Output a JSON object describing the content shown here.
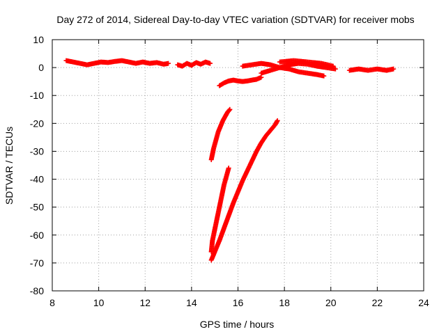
{
  "chart_data": {
    "type": "scatter",
    "title": "Day 272 of 2014, Sidereal Day-to-day VTEC variation (SDTVAR) for receiver mobs",
    "xlabel": "GPS time / hours",
    "ylabel": "SDTVAR / TECUs",
    "xlim": [
      8,
      24
    ],
    "ylim": [
      -80,
      10
    ],
    "x_ticks": [
      "8",
      "10",
      "12",
      "14",
      "16",
      "18",
      "20",
      "22",
      "24"
    ],
    "y_ticks": [
      "10",
      "0",
      "-10",
      "-20",
      "-30",
      "-40",
      "-50",
      "-60",
      "-70",
      "-80"
    ],
    "grid": true,
    "marker": "plus",
    "color": "#ff0000",
    "series": [
      {
        "x": [
          8.6,
          8.9,
          9.2,
          9.5,
          9.8,
          10.1,
          10.4,
          10.7,
          11.0,
          11.3,
          11.6,
          11.9,
          12.2,
          12.5,
          12.8,
          13.0
        ],
        "y": [
          2.5,
          2.0,
          1.5,
          1.0,
          1.5,
          2.0,
          1.8,
          2.2,
          2.5,
          2.0,
          1.5,
          2.0,
          1.5,
          1.8,
          1.2,
          1.5
        ]
      },
      {
        "x": [
          13.4,
          13.6,
          13.8,
          14.0,
          14.2,
          14.4,
          14.6,
          14.8
        ],
        "y": [
          1.0,
          0.5,
          1.5,
          0.8,
          1.8,
          1.2,
          2.0,
          1.5
        ]
      },
      {
        "x": [
          15.2,
          15.4,
          15.6,
          15.8,
          16.0,
          16.2,
          16.4,
          16.6,
          16.8,
          17.0
        ],
        "y": [
          -6.5,
          -5.5,
          -4.8,
          -4.5,
          -4.8,
          -5.0,
          -4.8,
          -4.5,
          -4.2,
          -3.5
        ]
      },
      {
        "x": [
          16.2,
          16.6,
          17.0,
          17.4,
          17.8,
          18.2,
          18.6,
          19.0,
          19.4,
          19.7
        ],
        "y": [
          0.5,
          1.0,
          1.5,
          1.0,
          0.0,
          -0.5,
          -1.5,
          -2.0,
          -2.5,
          -3.0
        ]
      },
      {
        "x": [
          17.0,
          17.4,
          17.8,
          18.2,
          18.6,
          19.0,
          19.4,
          19.8,
          20.2
        ],
        "y": [
          -2.0,
          -1.0,
          0.0,
          1.0,
          1.5,
          1.2,
          0.5,
          0.0,
          -0.5
        ]
      },
      {
        "x": [
          17.8,
          18.4,
          19.0,
          19.6,
          20.1
        ],
        "y": [
          2.0,
          2.5,
          2.0,
          1.5,
          0.5
        ]
      },
      {
        "x": [
          20.8,
          21.2,
          21.6,
          22.0,
          22.4,
          22.7
        ],
        "y": [
          -1.0,
          -0.5,
          -1.0,
          -0.5,
          -1.0,
          -0.5
        ]
      },
      {
        "x": [
          14.85,
          14.95,
          15.05,
          15.15,
          15.25,
          15.35,
          15.45,
          15.55,
          15.65
        ],
        "y": [
          -33,
          -29,
          -26,
          -23,
          -21,
          -19,
          -17.5,
          -16,
          -15
        ]
      },
      {
        "x": [
          14.85,
          14.9,
          15.0,
          15.1,
          15.2,
          15.3,
          15.4,
          15.5,
          15.6
        ],
        "y": [
          -66,
          -62,
          -58,
          -54,
          -50,
          -46,
          -42,
          -39,
          -36
        ]
      },
      {
        "x": [
          14.85,
          15.0,
          15.2,
          15.4,
          15.6,
          15.8,
          16.0,
          16.2,
          16.4,
          16.6,
          16.8,
          17.0,
          17.2,
          17.4,
          17.6,
          17.7
        ],
        "y": [
          -69,
          -66,
          -62,
          -57.5,
          -53,
          -48.5,
          -44.5,
          -40.5,
          -37,
          -33.5,
          -30,
          -27,
          -24.5,
          -22.5,
          -20.5,
          -19
        ]
      }
    ]
  }
}
